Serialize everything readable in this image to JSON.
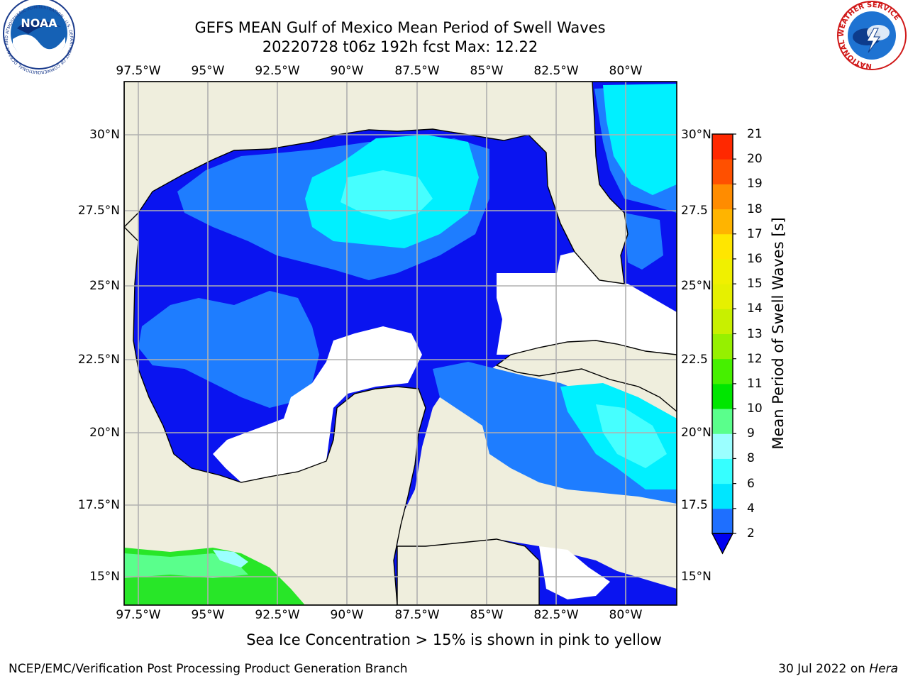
{
  "title_line1": "GEFS MEAN Gulf of Mexico Mean Period of Swell Waves",
  "title_line2": "20220728 t06z 192h fcst   Max: 12.22",
  "lon_ticks": [
    "97.5°W",
    "95°W",
    "92.5°W",
    "90°W",
    "87.5°W",
    "85°W",
    "82.5°W",
    "80°W"
  ],
  "lat_ticks_left": [
    "30°N",
    "27.5°N",
    "25°N",
    "22.5°N",
    "20°N",
    "17.5°N",
    "15°N"
  ],
  "lat_ticks_right": [
    "30°N",
    "27.5",
    "25°N",
    "22.5",
    "20°N",
    "17.5",
    "15°N"
  ],
  "colorbar": {
    "label": "Mean Period of Swell Waves [s]",
    "ticks": [
      "2",
      "4",
      "6",
      "8",
      "9",
      "10",
      "11",
      "12",
      "13",
      "14",
      "15",
      "16",
      "17",
      "18",
      "19",
      "20",
      "21"
    ],
    "colors": [
      "#1e6fff",
      "#00e6ff",
      "#36ffff",
      "#9bffff",
      "#5aff8c",
      "#00e600",
      "#46f000",
      "#96f000",
      "#c8f000",
      "#e6f000",
      "#f0f000",
      "#ffe600",
      "#ffb400",
      "#ff8c00",
      "#ff5000",
      "#ff2800"
    ],
    "extend_color": "#0000f0"
  },
  "map_colors": {
    "land": "#efeedd",
    "ocean_low": "#0a14f0",
    "ocean_2_4": "#1e7dff",
    "ocean_4_6": "#00f0ff",
    "ocean_6_8": "#46ffff",
    "ocean_9_10": "#5aff8c",
    "ocean_10_11": "#28e628",
    "ocean_11_12": "#64f000"
  },
  "note": "Sea Ice Concentration > 15% is shown in pink to yellow",
  "footer_left": "NCEP/EMC/Verification Post Processing Product Generation Branch",
  "footer_date": "30 Jul 2022 on ",
  "footer_host": "Hera",
  "logos": {
    "noaa_text": "NOAA",
    "noaa_ring": "NATIONAL OCEANIC AND ATMOSPHERIC ADMINISTRATION · U.S. DEPARTMENT OF COMMERCE",
    "nws_ring": "NATIONAL WEATHER SERVICE"
  }
}
